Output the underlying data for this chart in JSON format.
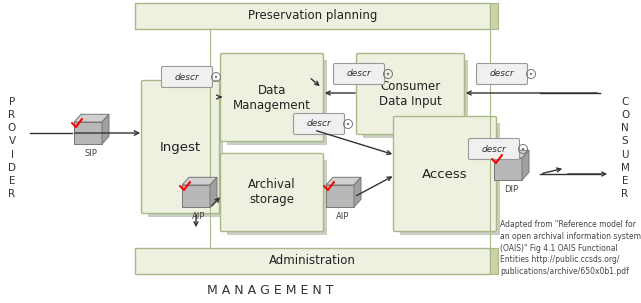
{
  "bg_color": "#ffffff",
  "box_facecolor": "#eef0e0",
  "box_edgecolor": "#a8b888",
  "descr_facecolor": "#f0f0f0",
  "descr_edgecolor": "#999999",
  "shadow_color": "#c8d4a8",
  "pkg_body": "#b0b0b0",
  "pkg_top": "#d0d0d0",
  "pkg_side": "#909090",
  "note_text": "Adapted from \"Reference model for\nan open archival information system\n(OAIS)\" Fig 4.1 OAIS Functional\nEntities http://public.ccsds.org/\npublications/archive/650x0b1.pdf",
  "preservation_label": "Preservation planning",
  "administration_label": "Administration",
  "management_label": "M A N A G E M E N T",
  "ingest_label": "Ingest",
  "data_mgmt_label": "Data\nManagement",
  "archival_label": "Archival\nstorage",
  "consumer_input_label": "Consumer\nData Input",
  "access_label": "Access",
  "provider_label": "P\nR\nO\nV\nI\nD\nE\nR",
  "consumer_label": "C\nO\nN\nS\nU\nM\nE\nR",
  "descr_label": "descr"
}
